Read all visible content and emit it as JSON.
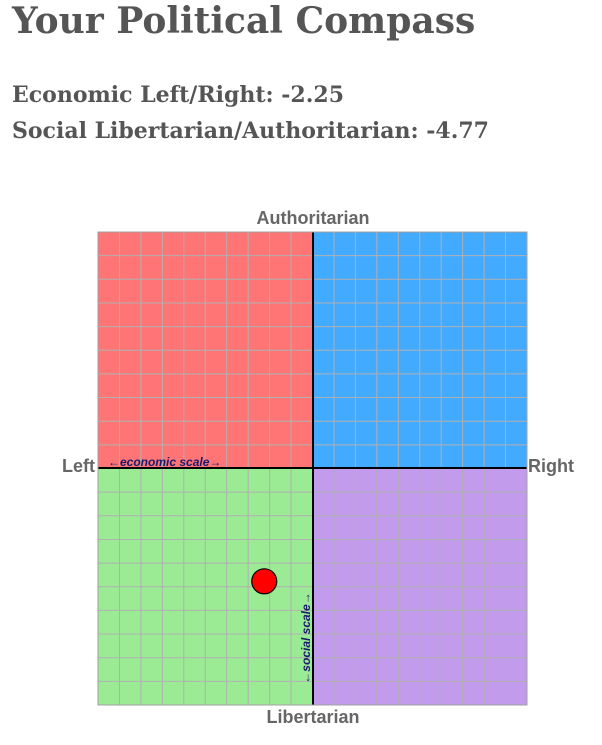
{
  "page": {
    "title": "Your Political Compass",
    "economic_label": "Economic Left/Right: -2.25",
    "social_label": "Social Libertarian/Authoritarian: -4.77"
  },
  "chart_data": {
    "type": "scatter",
    "x": [
      -2.25
    ],
    "y": [
      -4.77
    ],
    "xlim": [
      -10,
      10
    ],
    "ylim": [
      -10,
      10
    ],
    "grid": true,
    "top_label": "Authoritarian",
    "bottom_label": "Libertarian",
    "left_label": "Left",
    "right_label": "Right",
    "economic_scale_label": "←economic scale→",
    "social_scale_label": "←social scale→",
    "colors": {
      "authoritarian_left": "#ff7575",
      "authoritarian_right": "#42aaff",
      "libertarian_left": "#9aeb94",
      "libertarian_right": "#c39bec",
      "grid": "#b0b0b0",
      "axis": "#000000",
      "marker": "#ff0000"
    }
  }
}
